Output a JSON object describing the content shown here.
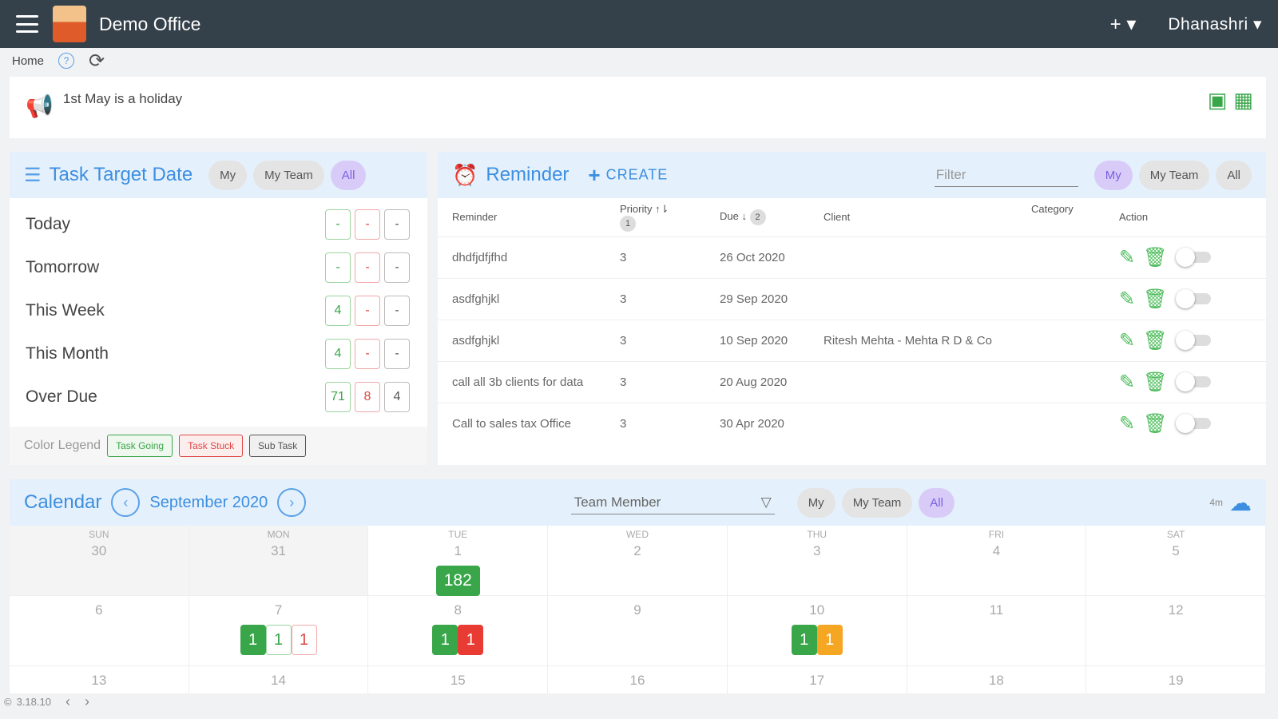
{
  "header": {
    "title": "Demo Office",
    "plus": "+ ▾",
    "user": "Dhanashri ▾"
  },
  "breadcrumb": {
    "home": "Home",
    "help": "?"
  },
  "announcement": {
    "text": "1st May is a holiday"
  },
  "filters": {
    "my": "My",
    "my_team": "My Team",
    "all": "All"
  },
  "tasks": {
    "title": "Task Target Date",
    "rows": [
      {
        "label": "Today",
        "going": "-",
        "stuck": "-",
        "sub": "-"
      },
      {
        "label": "Tomorrow",
        "going": "-",
        "stuck": "-",
        "sub": "-"
      },
      {
        "label": "This Week",
        "going": "4",
        "stuck": "-",
        "sub": "-"
      },
      {
        "label": "This Month",
        "going": "4",
        "stuck": "-",
        "sub": "-"
      },
      {
        "label": "Over Due",
        "going": "71",
        "stuck": "8",
        "sub": "4"
      }
    ],
    "legend": {
      "label": "Color Legend",
      "going": "Task Going",
      "stuck": "Task Stuck",
      "sub": "Sub Task"
    }
  },
  "reminder": {
    "title": "Reminder",
    "create": "CREATE",
    "filter_placeholder": "Filter",
    "columns": {
      "reminder": "Reminder",
      "priority": "Priority",
      "priority_badge": "1",
      "due": "Due",
      "due_badge": "2",
      "client": "Client",
      "category": "Category",
      "action": "Action"
    },
    "rows": [
      {
        "reminder": "dhdfjdfjfhd",
        "priority": "3",
        "due": "26 Oct 2020",
        "client": "",
        "category": ""
      },
      {
        "reminder": "asdfghjkl",
        "priority": "3",
        "due": "29 Sep 2020",
        "client": "",
        "category": ""
      },
      {
        "reminder": "asdfghjkl",
        "priority": "3",
        "due": "10 Sep 2020",
        "client": "Ritesh Mehta - Mehta R D & Co",
        "category": ""
      },
      {
        "reminder": "call all 3b clients for data",
        "priority": "3",
        "due": "20 Aug 2020",
        "client": "",
        "category": ""
      },
      {
        "reminder": "Call to sales tax Office",
        "priority": "3",
        "due": "30 Apr 2020",
        "client": "",
        "category": ""
      }
    ]
  },
  "calendar": {
    "title": "Calendar",
    "month": "September 2020",
    "member_placeholder": "Team Member",
    "download_label": "4m",
    "days": [
      "SUN",
      "MON",
      "TUE",
      "WED",
      "THU",
      "FRI",
      "SAT"
    ],
    "week1": [
      "30",
      "31",
      "1",
      "2",
      "3",
      "4",
      "5"
    ],
    "week2": [
      "6",
      "7",
      "8",
      "9",
      "10",
      "11",
      "12"
    ],
    "week3": [
      "13",
      "14",
      "15",
      "16",
      "17",
      "18",
      "19"
    ],
    "events": {
      "sep1": "182",
      "sep7": [
        "1",
        "1",
        "1"
      ],
      "sep8": [
        "1",
        "1"
      ],
      "sep10": [
        "1",
        "1"
      ]
    }
  },
  "footer": {
    "version": "3.18.10"
  }
}
